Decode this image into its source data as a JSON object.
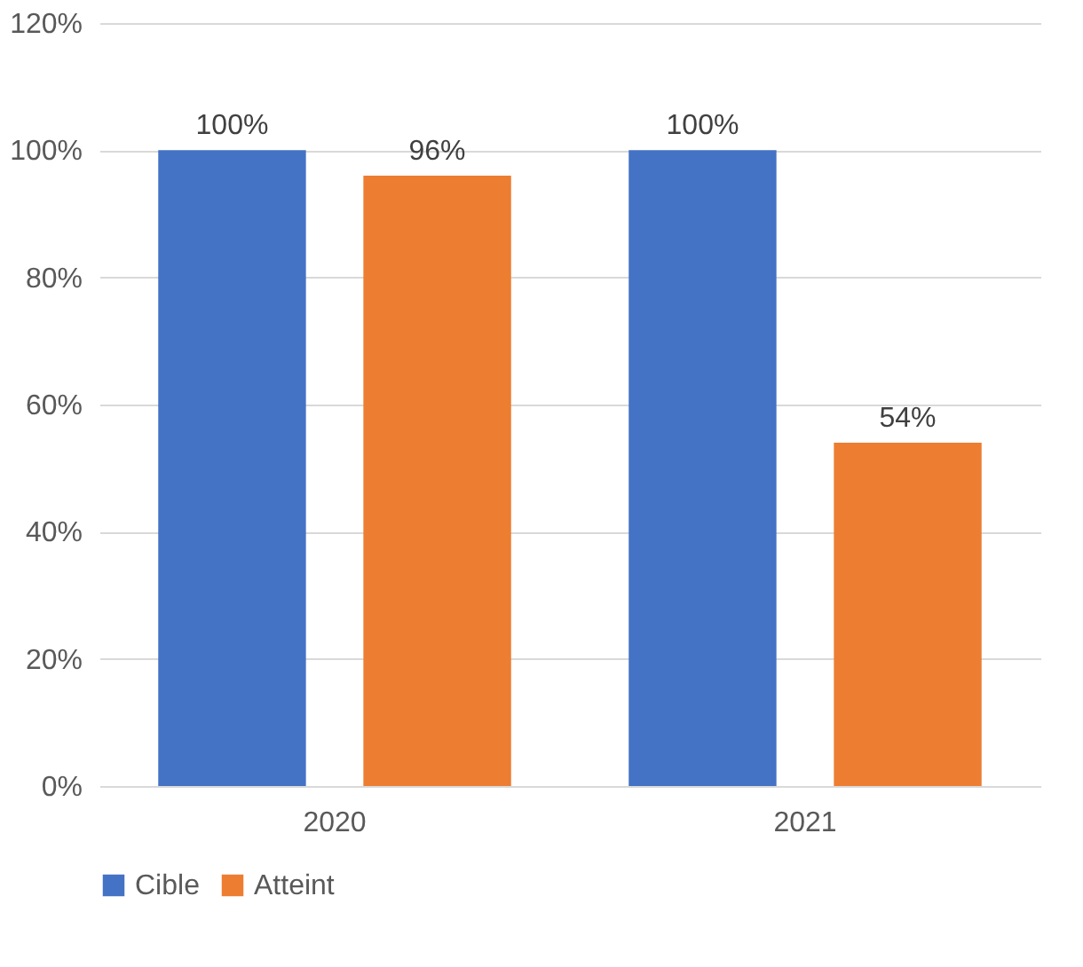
{
  "chart_data": {
    "type": "bar",
    "categories": [
      "2020",
      "2021"
    ],
    "series": [
      {
        "name": "Cible",
        "color": "#4472c4",
        "values": [
          100,
          100
        ],
        "value_labels": [
          "100%",
          "100%"
        ]
      },
      {
        "name": "Atteint",
        "color": "#ed7d31",
        "values": [
          96,
          54
        ],
        "value_labels": [
          "96%",
          "54%"
        ]
      }
    ],
    "ylim": [
      0,
      120
    ],
    "yticks": [
      {
        "value": 0,
        "label": "0%"
      },
      {
        "value": 20,
        "label": "20%"
      },
      {
        "value": 40,
        "label": "40%"
      },
      {
        "value": 60,
        "label": "60%"
      },
      {
        "value": 80,
        "label": "80%"
      },
      {
        "value": 100,
        "label": "100%"
      },
      {
        "value": 120,
        "label": "120%"
      }
    ],
    "grid": "y",
    "legend": "bottom"
  }
}
